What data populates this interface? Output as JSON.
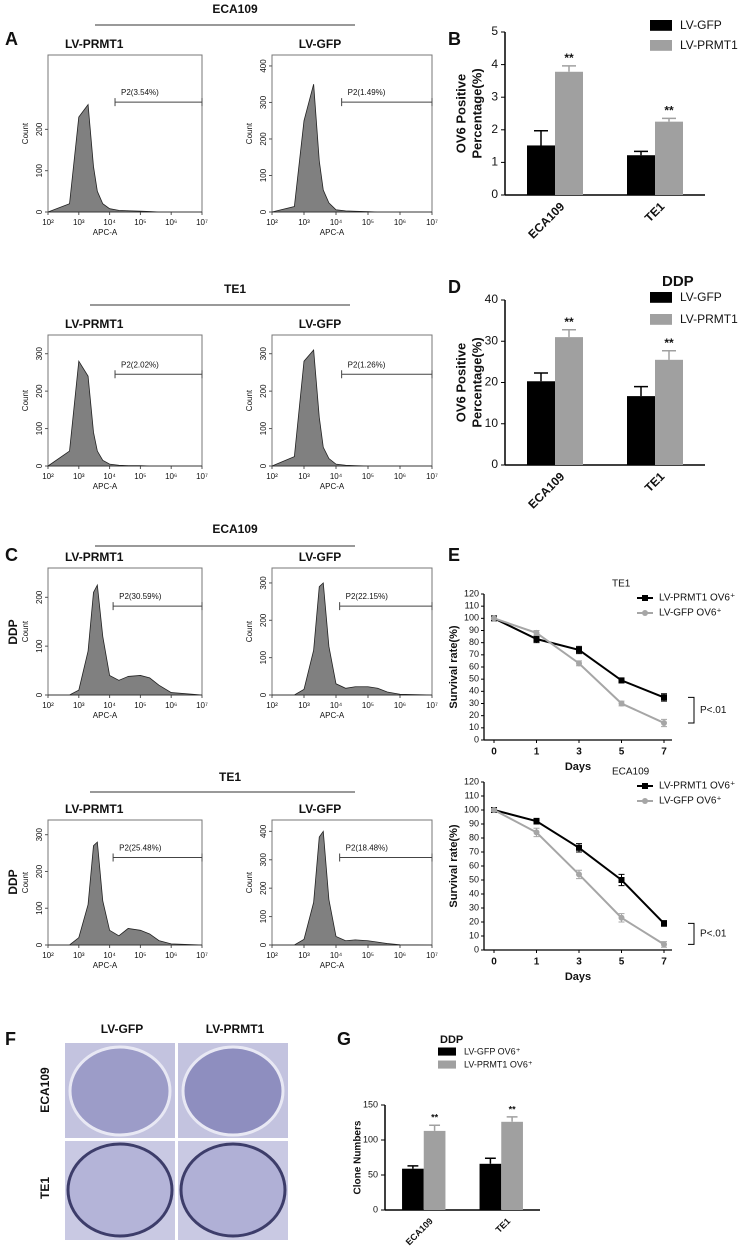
{
  "figure": {
    "groups": [
      "ECA109",
      "TE1",
      "ECA109",
      "TE1"
    ],
    "side_labels": [
      "DDP",
      "DDP"
    ]
  },
  "photo": {
    "panel": "F",
    "columns": [
      "LV-GFP",
      "LV-PRMT1"
    ],
    "rows": [
      "ECA109",
      "TE1"
    ]
  },
  "chart_data": [
    {
      "type": "area",
      "panel": "A",
      "title": "LV-PRMT1",
      "xlabel": "APC-A",
      "ylabel": "Count",
      "xscale": "log",
      "color": "#808080",
      "x": [
        100,
        500,
        1000,
        2000,
        3000,
        4000,
        6000,
        10000,
        20000,
        40000,
        100000,
        200000,
        400000,
        1000000,
        10000000
      ],
      "values": [
        0,
        20,
        230,
        260,
        110,
        50,
        20,
        8,
        4,
        3,
        2,
        1,
        0,
        0,
        0
      ],
      "xlim": [
        100,
        10000000
      ],
      "xticks": [
        {
          "value": 100,
          "label": "10²"
        },
        {
          "value": 1000,
          "label": "10³"
        },
        {
          "value": 10000,
          "label": "10⁴"
        },
        {
          "value": 100000,
          "label": "10⁵"
        },
        {
          "value": 1000000,
          "label": "10⁶"
        },
        {
          "value": 10000000,
          "label": "10⁷"
        }
      ],
      "ylim": [
        0,
        380
      ],
      "yticks": [
        0,
        100,
        200
      ],
      "gate": {
        "label": "P2(3.54%)",
        "x": [
          15000,
          10000000
        ]
      }
    },
    {
      "type": "area",
      "title": "LV-GFP",
      "xlabel": "APC-A",
      "ylabel": "Count",
      "xscale": "log",
      "color": "#808080",
      "x": [
        100,
        500,
        1000,
        2000,
        3000,
        4000,
        6000,
        10000,
        20000,
        40000,
        100000,
        200000,
        400000,
        1000000,
        10000000
      ],
      "values": [
        0,
        15,
        250,
        350,
        140,
        60,
        25,
        6,
        3,
        2,
        1,
        0,
        0,
        0,
        0
      ],
      "xlim": [
        100,
        10000000
      ],
      "xticks": [
        {
          "value": 100,
          "label": "10²"
        },
        {
          "value": 1000,
          "label": "10³"
        },
        {
          "value": 10000,
          "label": "10⁴"
        },
        {
          "value": 100000,
          "label": "10⁵"
        },
        {
          "value": 1000000,
          "label": "10⁶"
        },
        {
          "value": 10000000,
          "label": "10⁷"
        }
      ],
      "ylim": [
        0,
        430
      ],
      "yticks": [
        0,
        100,
        200,
        300,
        400
      ],
      "gate": {
        "label": "P2(1.49%)",
        "x": [
          15000,
          10000000
        ]
      }
    },
    {
      "type": "area",
      "title": "LV-PRMT1",
      "xlabel": "APC-A",
      "ylabel": "Count",
      "xscale": "log",
      "color": "#808080",
      "x": [
        100,
        500,
        1000,
        2000,
        3000,
        4000,
        6000,
        10000,
        20000,
        40000,
        100000,
        200000,
        400000,
        1000000,
        10000000
      ],
      "values": [
        0,
        40,
        280,
        240,
        90,
        40,
        15,
        5,
        2,
        1,
        1,
        0,
        0,
        0,
        0
      ],
      "xlim": [
        100,
        10000000
      ],
      "xticks": [
        {
          "value": 100,
          "label": "10²"
        },
        {
          "value": 1000,
          "label": "10³"
        },
        {
          "value": 10000,
          "label": "10⁴"
        },
        {
          "value": 100000,
          "label": "10⁵"
        },
        {
          "value": 1000000,
          "label": "10⁶"
        },
        {
          "value": 10000000,
          "label": "10⁷"
        }
      ],
      "ylim": [
        0,
        350
      ],
      "yticks": [
        0,
        100,
        200,
        300
      ],
      "gate": {
        "label": "P2(2.02%)",
        "x": [
          15000,
          10000000
        ]
      }
    },
    {
      "type": "area",
      "title": "LV-GFP",
      "xlabel": "APC-A",
      "ylabel": "Count",
      "xscale": "log",
      "color": "#808080",
      "x": [
        100,
        500,
        1000,
        2000,
        3000,
        4000,
        6000,
        10000,
        20000,
        40000,
        100000,
        200000,
        400000,
        1000000,
        10000000
      ],
      "values": [
        0,
        25,
        280,
        310,
        130,
        50,
        20,
        5,
        2,
        1,
        0,
        0,
        0,
        0,
        0
      ],
      "xlim": [
        100,
        10000000
      ],
      "xticks": [
        {
          "value": 100,
          "label": "10²"
        },
        {
          "value": 1000,
          "label": "10³"
        },
        {
          "value": 10000,
          "label": "10⁴"
        },
        {
          "value": 100000,
          "label": "10⁵"
        },
        {
          "value": 1000000,
          "label": "10⁶"
        },
        {
          "value": 10000000,
          "label": "10⁷"
        }
      ],
      "ylim": [
        0,
        350
      ],
      "yticks": [
        0,
        100,
        200,
        300
      ],
      "gate": {
        "label": "P2(1.26%)",
        "x": [
          15000,
          10000000
        ]
      }
    },
    {
      "type": "bar",
      "panel": "B",
      "ylabel": [
        "OV6 Positive",
        "Percentage(%)"
      ],
      "categories": [
        "ECA109",
        "TE1"
      ],
      "series": [
        {
          "name": "LV-GFP",
          "color": "#000000",
          "values": [
            1.52,
            1.22
          ],
          "errors": [
            0.45,
            0.12
          ]
        },
        {
          "name": "LV-PRMT1",
          "color": "#a0a0a0",
          "values": [
            3.78,
            2.25
          ],
          "errors": [
            0.18,
            0.1
          ]
        }
      ],
      "annotations": [
        "**",
        "**"
      ],
      "ylim": [
        0,
        5
      ],
      "yticks": [
        0,
        1,
        2,
        3,
        4,
        5
      ],
      "legend": "upper right"
    },
    {
      "type": "bar",
      "panel": "D",
      "title": "DDP",
      "ylabel": [
        "OV6 Positive",
        "Percentage(%)"
      ],
      "categories": [
        "ECA109",
        "TE1"
      ],
      "series": [
        {
          "name": "LV-GFP",
          "color": "#000000",
          "values": [
            20.3,
            16.7
          ],
          "errors": [
            2,
            2.3
          ]
        },
        {
          "name": "LV-PRMT1",
          "color": "#a0a0a0",
          "values": [
            31,
            25.5
          ],
          "errors": [
            1.8,
            2.2
          ]
        }
      ],
      "annotations": [
        "**",
        "**"
      ],
      "ylim": [
        0,
        40
      ],
      "yticks": [
        0,
        10,
        20,
        30,
        40
      ],
      "legend": "upper right"
    },
    {
      "type": "area",
      "panel": "C",
      "title": "LV-PRMT1",
      "xlabel": "APC-A",
      "ylabel": "Count",
      "xscale": "log",
      "color": "#808080",
      "x": [
        100,
        500,
        1000,
        2000,
        3000,
        4000,
        6000,
        10000,
        20000,
        40000,
        100000,
        200000,
        400000,
        1000000,
        10000000
      ],
      "values": [
        0,
        0,
        10,
        90,
        210,
        225,
        120,
        40,
        30,
        38,
        40,
        35,
        20,
        5,
        0
      ],
      "xlim": [
        100,
        10000000
      ],
      "xticks": [
        {
          "value": 100,
          "label": "10²"
        },
        {
          "value": 1000,
          "label": "10³"
        },
        {
          "value": 10000,
          "label": "10⁴"
        },
        {
          "value": 100000,
          "label": "10⁵"
        },
        {
          "value": 1000000,
          "label": "10⁶"
        },
        {
          "value": 10000000,
          "label": "10⁷"
        }
      ],
      "ylim": [
        0,
        260
      ],
      "yticks": [
        0,
        100,
        200
      ],
      "gate": {
        "label": "P2(30.59%)",
        "x": [
          13000,
          10000000
        ]
      }
    },
    {
      "type": "area",
      "title": "LV-GFP",
      "xlabel": "APC-A",
      "ylabel": "Count",
      "xscale": "log",
      "color": "#808080",
      "x": [
        100,
        500,
        1000,
        2000,
        3000,
        4000,
        6000,
        10000,
        20000,
        40000,
        100000,
        200000,
        400000,
        1000000,
        10000000
      ],
      "values": [
        0,
        0,
        15,
        120,
        290,
        300,
        130,
        30,
        18,
        22,
        22,
        18,
        8,
        2,
        0
      ],
      "xlim": [
        100,
        10000000
      ],
      "xticks": [
        {
          "value": 100,
          "label": "10²"
        },
        {
          "value": 1000,
          "label": "10³"
        },
        {
          "value": 10000,
          "label": "10⁴"
        },
        {
          "value": 100000,
          "label": "10⁵"
        },
        {
          "value": 1000000,
          "label": "10⁶"
        },
        {
          "value": 10000000,
          "label": "10⁷"
        }
      ],
      "ylim": [
        0,
        340
      ],
      "yticks": [
        0,
        100,
        200,
        300
      ],
      "gate": {
        "label": "P2(22.15%)",
        "x": [
          13000,
          10000000
        ]
      }
    },
    {
      "type": "area",
      "title": "LV-PRMT1",
      "xlabel": "APC-A",
      "ylabel": "Count",
      "xscale": "log",
      "color": "#808080",
      "x": [
        100,
        500,
        1000,
        2000,
        3000,
        4000,
        6000,
        10000,
        20000,
        40000,
        100000,
        200000,
        400000,
        1000000,
        10000000
      ],
      "values": [
        0,
        0,
        20,
        110,
        270,
        280,
        120,
        40,
        25,
        45,
        40,
        30,
        12,
        3,
        0
      ],
      "xlim": [
        100,
        10000000
      ],
      "xticks": [
        {
          "value": 100,
          "label": "10²"
        },
        {
          "value": 1000,
          "label": "10³"
        },
        {
          "value": 10000,
          "label": "10⁴"
        },
        {
          "value": 100000,
          "label": "10⁵"
        },
        {
          "value": 1000000,
          "label": "10⁶"
        },
        {
          "value": 10000000,
          "label": "10⁷"
        }
      ],
      "ylim": [
        0,
        340
      ],
      "yticks": [
        0,
        100,
        200,
        300
      ],
      "gate": {
        "label": "P2(25.48%)",
        "x": [
          13000,
          10000000
        ]
      }
    },
    {
      "type": "area",
      "title": "LV-GFP",
      "xlabel": "APC-A",
      "ylabel": "Count",
      "xscale": "log",
      "color": "#808080",
      "x": [
        100,
        500,
        1000,
        2000,
        3000,
        4000,
        6000,
        10000,
        20000,
        40000,
        100000,
        200000,
        400000,
        1000000,
        10000000
      ],
      "values": [
        0,
        0,
        20,
        150,
        380,
        400,
        160,
        30,
        15,
        18,
        15,
        10,
        5,
        1,
        0
      ],
      "xlim": [
        100,
        10000000
      ],
      "xticks": [
        {
          "value": 100,
          "label": "10²"
        },
        {
          "value": 1000,
          "label": "10³"
        },
        {
          "value": 10000,
          "label": "10⁴"
        },
        {
          "value": 100000,
          "label": "10⁵"
        },
        {
          "value": 1000000,
          "label": "10⁶"
        },
        {
          "value": 10000000,
          "label": "10⁷"
        }
      ],
      "ylim": [
        0,
        440
      ],
      "yticks": [
        0,
        100,
        200,
        300,
        400
      ],
      "gate": {
        "label": "P2(18.48%)",
        "x": [
          13000,
          10000000
        ]
      }
    },
    {
      "type": "line",
      "panel": "E",
      "title": "TE1",
      "xlabel": "Days",
      "ylabel": "Survival rate(%)",
      "categories": [
        "0",
        "1",
        "3",
        "5",
        "7"
      ],
      "series": [
        {
          "name": "LV-PRMT1 OV6⁺",
          "color": "#000000",
          "marker": "square",
          "values": [
            100,
            83,
            74,
            49,
            35
          ],
          "errors": [
            1,
            3,
            3,
            2,
            3
          ]
        },
        {
          "name": "LV-GFP OV6⁺",
          "color": "#a6a6a6",
          "marker": "circle",
          "values": [
            100,
            88,
            63,
            30,
            14
          ],
          "errors": [
            1,
            2,
            2,
            2,
            3
          ]
        }
      ],
      "annotation": "P<.01",
      "ylim": [
        0,
        120
      ],
      "yticks": [
        0,
        10,
        20,
        30,
        40,
        50,
        60,
        70,
        80,
        90,
        100,
        110,
        120
      ],
      "legend": "upper right"
    },
    {
      "type": "line",
      "title": "ECA109",
      "xlabel": "Days",
      "ylabel": "Survival rate(%)",
      "categories": [
        "0",
        "1",
        "3",
        "5",
        "7"
      ],
      "series": [
        {
          "name": "LV-PRMT1 OV6⁺",
          "color": "#000000",
          "marker": "square",
          "values": [
            100,
            92,
            73,
            50,
            19
          ],
          "errors": [
            1,
            2,
            3,
            4,
            2
          ]
        },
        {
          "name": "LV-GFP OV6⁺",
          "color": "#a6a6a6",
          "marker": "circle",
          "values": [
            100,
            84,
            54,
            23,
            4
          ],
          "errors": [
            1,
            3,
            3,
            3,
            2
          ]
        }
      ],
      "annotation": "P<.01",
      "ylim": [
        0,
        120
      ],
      "yticks": [
        0,
        10,
        20,
        30,
        40,
        50,
        60,
        70,
        80,
        90,
        100,
        110,
        120
      ],
      "legend": "upper right"
    },
    {
      "type": "bar",
      "panel": "G",
      "title": "DDP",
      "ylabel": [
        "Clone Numbers"
      ],
      "categories": [
        "ECA109",
        "TE1"
      ],
      "series": [
        {
          "name": "LV-GFP OV6⁺",
          "color": "#000000",
          "values": [
            59,
            66
          ],
          "errors": [
            4,
            8
          ]
        },
        {
          "name": "LV-PRMT1 OV6⁺",
          "color": "#a0a0a0",
          "values": [
            113,
            126
          ],
          "errors": [
            8,
            7
          ]
        }
      ],
      "annotations": [
        "**",
        "**"
      ],
      "ylim": [
        0,
        150
      ],
      "yticks": [
        0,
        50,
        100,
        150
      ],
      "legend": "upper left"
    }
  ]
}
